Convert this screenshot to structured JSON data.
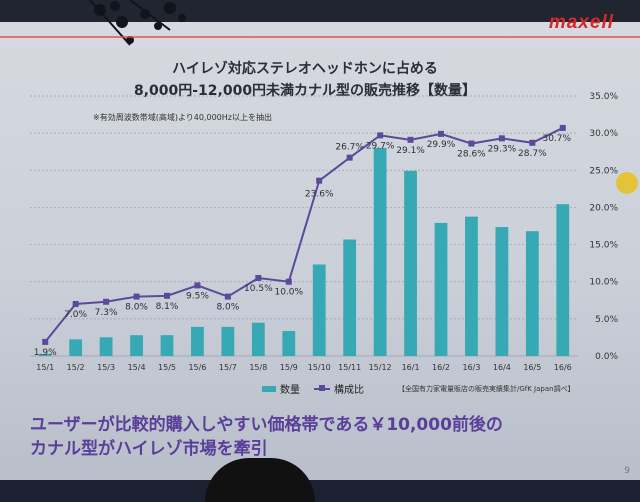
{
  "brand": "maxell",
  "title_line1": "ハイレゾ対応ステレオヘッドホンに占める",
  "title_line2": "8,000円-12,000円未満カナル型の販売推移【数量】",
  "note": "※有効周波数帯域(高域)より40,000Hz以上を抽出",
  "legend": {
    "bar_label": "数量",
    "line_label": "構成比"
  },
  "source": "【全国有力家電量販店の販売実績集計/GfK Japan調べ】",
  "caption_line1": "ユーザーが比較的購入しやすい価格帯である￥10,000前後の",
  "caption_line2": "カナル型がハイレゾ市場を牽引",
  "page_number": "9",
  "colors": {
    "bar": "#37a9b4",
    "line": "#5b4a9a",
    "brand": "#d52828",
    "caption": "#5a3f9a"
  },
  "chart_data": {
    "type": "bar+line",
    "categories": [
      "15/1",
      "15/2",
      "15/3",
      "15/4",
      "15/5",
      "15/6",
      "15/7",
      "15/8",
      "15/9",
      "15/10",
      "15/11",
      "15/12",
      "16/1",
      "16/2",
      "16/3",
      "16/4",
      "16/5",
      "16/6"
    ],
    "series": [
      {
        "name": "数量",
        "type": "bar",
        "values": [
          0.1,
          0.8,
          0.9,
          1.0,
          1.0,
          1.4,
          1.4,
          1.6,
          1.2,
          4.4,
          5.6,
          10.0,
          8.9,
          6.4,
          6.7,
          6.2,
          6.0,
          7.3
        ]
      },
      {
        "name": "構成比",
        "type": "line",
        "axis": "right",
        "values": [
          1.9,
          7.0,
          7.3,
          8.0,
          8.1,
          9.5,
          8.0,
          10.5,
          10.0,
          23.6,
          26.7,
          29.7,
          29.1,
          29.9,
          28.6,
          29.3,
          28.7,
          30.7
        ],
        "labels": [
          "1.9%",
          "7.0%",
          "7.3%",
          "8.0%",
          "8.1%",
          "9.5%",
          "8.0%",
          "10.5%",
          "10.0%",
          "23.6%",
          "26.7%",
          "29.7%",
          "29.1%",
          "29.9%",
          "28.6%",
          "29.3%",
          "28.7%",
          "30.7%"
        ]
      }
    ],
    "y_right": {
      "range": [
        0,
        35
      ],
      "ticks": [
        "0.0%",
        "5.0%",
        "10.0%",
        "15.0%",
        "20.0%",
        "25.0%",
        "30.0%",
        "35.0%"
      ]
    },
    "grid": true
  }
}
